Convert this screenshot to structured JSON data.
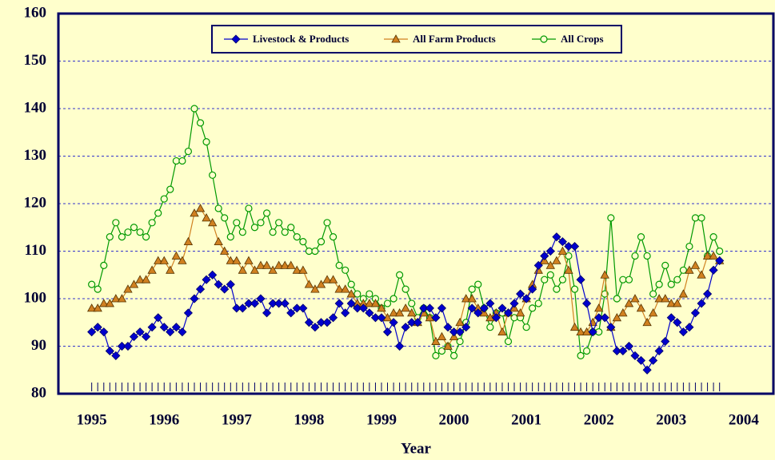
{
  "chart_data": {
    "type": "line",
    "x_label": "Year",
    "x": [
      1995,
      1995.083,
      1995.167,
      1995.25,
      1995.333,
      1995.417,
      1995.5,
      1995.583,
      1995.667,
      1995.75,
      1995.833,
      1995.917,
      1996,
      1996.083,
      1996.167,
      1996.25,
      1996.333,
      1996.417,
      1996.5,
      1996.583,
      1996.667,
      1996.75,
      1996.833,
      1996.917,
      1997,
      1997.083,
      1997.167,
      1997.25,
      1997.333,
      1997.417,
      1997.5,
      1997.583,
      1997.667,
      1997.75,
      1997.833,
      1997.917,
      1998,
      1998.083,
      1998.167,
      1998.25,
      1998.333,
      1998.417,
      1998.5,
      1998.583,
      1998.667,
      1998.75,
      1998.833,
      1998.917,
      1999,
      1999.083,
      1999.167,
      1999.25,
      1999.333,
      1999.417,
      1999.5,
      1999.583,
      1999.667,
      1999.75,
      1999.833,
      1999.917,
      2000,
      2000.083,
      2000.167,
      2000.25,
      2000.333,
      2000.417,
      2000.5,
      2000.583,
      2000.667,
      2000.75,
      2000.833,
      2000.917,
      2001,
      2001.083,
      2001.167,
      2001.25,
      2001.333,
      2001.417,
      2001.5,
      2001.583,
      2001.667,
      2001.75,
      2001.833,
      2001.917,
      2002,
      2002.083,
      2002.167,
      2002.25,
      2002.333,
      2002.417,
      2002.5,
      2002.583,
      2002.667,
      2002.75,
      2002.833,
      2002.917,
      2003,
      2003.083,
      2003.167,
      2003.25,
      2003.333,
      2003.417,
      2003.5,
      2003.583,
      2003.667
    ],
    "series": [
      {
        "name": "Livestock & Products",
        "color": "#0000cc",
        "marker": "diamond",
        "values": [
          93,
          94,
          93,
          89,
          88,
          90,
          90,
          92,
          93,
          92,
          94,
          96,
          94,
          93,
          94,
          93,
          97,
          100,
          102,
          104,
          105,
          103,
          102,
          103,
          98,
          98,
          99,
          99,
          100,
          97,
          99,
          99,
          99,
          97,
          98,
          98,
          95,
          94,
          95,
          95,
          96,
          99,
          97,
          99,
          98,
          98,
          97,
          96,
          96,
          93,
          95,
          90,
          94,
          95,
          95,
          98,
          98,
          96,
          98,
          94,
          93,
          93,
          94,
          98,
          97,
          98,
          99,
          96,
          98,
          97,
          99,
          101,
          100,
          102,
          107,
          109,
          110,
          113,
          112,
          111,
          111,
          104,
          99,
          93,
          96,
          96,
          94,
          89,
          89,
          90,
          88,
          87,
          85,
          87,
          89,
          91,
          96,
          95,
          93,
          94,
          97,
          99,
          101,
          106,
          108
        ]
      },
      {
        "name": "All Farm Products",
        "color": "#d08020",
        "marker": "triangle",
        "values": [
          98,
          98,
          99,
          99,
          100,
          100,
          102,
          103,
          104,
          104,
          106,
          108,
          108,
          106,
          109,
          108,
          112,
          118,
          119,
          117,
          116,
          112,
          110,
          108,
          108,
          106,
          108,
          106,
          107,
          107,
          106,
          107,
          107,
          107,
          106,
          106,
          103,
          102,
          103,
          104,
          104,
          102,
          102,
          101,
          99,
          99,
          99,
          99,
          98,
          96,
          97,
          97,
          98,
          97,
          95,
          97,
          96,
          91,
          92,
          90,
          92,
          95,
          100,
          100,
          98,
          97,
          96,
          97,
          93,
          97,
          98,
          97,
          100,
          103,
          106,
          108,
          107,
          108,
          110,
          106,
          94,
          93,
          93,
          95,
          98,
          105,
          94,
          96,
          97,
          99,
          100,
          98,
          95,
          97,
          100,
          100,
          99,
          99,
          101,
          106,
          107,
          105,
          109,
          109,
          108
        ]
      },
      {
        "name": "All Crops",
        "color": "#009900",
        "marker": "circle",
        "values": [
          103,
          102,
          107,
          113,
          116,
          113,
          114,
          115,
          114,
          113,
          116,
          118,
          121,
          123,
          129,
          129,
          131,
          140,
          137,
          133,
          126,
          119,
          117,
          113,
          116,
          114,
          119,
          115,
          116,
          118,
          114,
          116,
          114,
          115,
          113,
          112,
          110,
          110,
          112,
          116,
          113,
          107,
          106,
          103,
          101,
          100,
          101,
          100,
          98,
          99,
          100,
          105,
          102,
          99,
          96,
          98,
          96,
          88,
          89,
          90,
          88,
          91,
          95,
          102,
          103,
          98,
          94,
          97,
          97,
          91,
          96,
          96,
          94,
          98,
          99,
          104,
          105,
          102,
          104,
          109,
          102,
          88,
          89,
          93,
          93,
          101,
          117,
          100,
          104,
          104,
          109,
          113,
          109,
          101,
          103,
          107,
          103,
          104,
          106,
          111,
          117,
          117,
          109,
          113,
          110
        ]
      }
    ],
    "xlim": [
      1994.54,
      2004.41
    ],
    "xticks": [
      1995,
      1996,
      1997,
      1998,
      1999,
      2000,
      2001,
      2002,
      2003,
      2004
    ],
    "ylim": [
      80,
      160
    ],
    "yticks": [
      80,
      90,
      100,
      110,
      120,
      130,
      140,
      150,
      160
    ],
    "grid": true,
    "legend": "top"
  }
}
